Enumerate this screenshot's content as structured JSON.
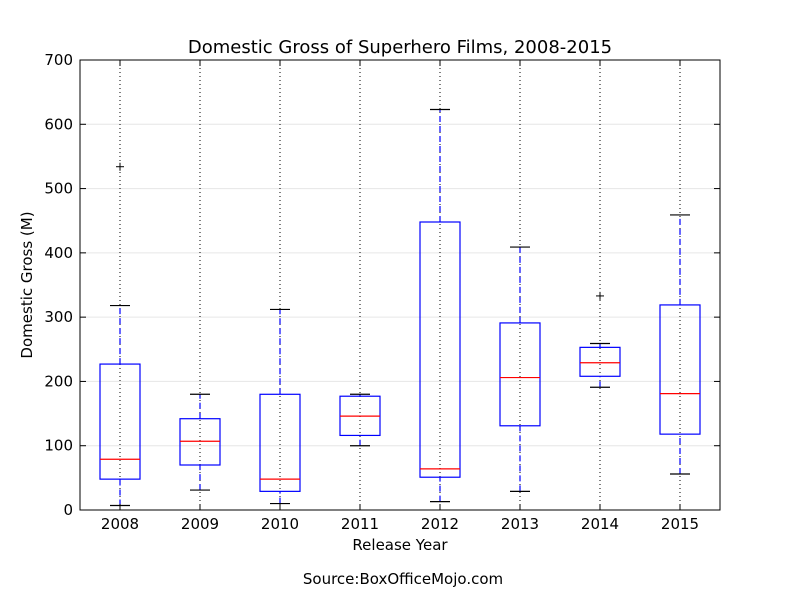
{
  "chart_data": {
    "type": "boxplot",
    "title": "Domestic Gross of Superhero Films, 2008-2015",
    "xlabel": "Release Year",
    "ylabel": "Domestic Gross (M)",
    "ylim": [
      0,
      700
    ],
    "yticks": [
      "0",
      "100",
      "200",
      "300",
      "400",
      "500",
      "600",
      "700"
    ],
    "categories": [
      "2008",
      "2009",
      "2010",
      "2011",
      "2012",
      "2013",
      "2014",
      "2015"
    ],
    "grid": "on",
    "boxes": [
      {
        "category": "2008",
        "whisker_low": 7,
        "q1": 48,
        "median": 79,
        "q3": 227,
        "whisker_high": 318,
        "outliers": [
          534
        ]
      },
      {
        "category": "2009",
        "whisker_low": 31,
        "q1": 70,
        "median": 107,
        "q3": 142,
        "whisker_high": 180,
        "outliers": []
      },
      {
        "category": "2010",
        "whisker_low": 10,
        "q1": 29,
        "median": 48,
        "q3": 180,
        "whisker_high": 312,
        "outliers": []
      },
      {
        "category": "2011",
        "whisker_low": 100,
        "q1": 116,
        "median": 146,
        "q3": 177,
        "whisker_high": 180,
        "outliers": []
      },
      {
        "category": "2012",
        "whisker_low": 13,
        "q1": 51,
        "median": 64,
        "q3": 448,
        "whisker_high": 623,
        "outliers": []
      },
      {
        "category": "2013",
        "whisker_low": 29,
        "q1": 131,
        "median": 206,
        "q3": 291,
        "whisker_high": 409,
        "outliers": []
      },
      {
        "category": "2014",
        "whisker_low": 191,
        "q1": 208,
        "median": 229,
        "q3": 253,
        "whisker_high": 259,
        "outliers": [
          333
        ]
      },
      {
        "category": "2015",
        "whisker_low": 56,
        "q1": 118,
        "median": 181,
        "q3": 319,
        "whisker_high": 459,
        "outliers": []
      }
    ],
    "colors": {
      "box": "#0000ff",
      "median": "#ff0000",
      "flier": "#000000",
      "grid": "#000000"
    }
  },
  "footer": {
    "source": "Source:BoxOfficeMojo.com"
  }
}
